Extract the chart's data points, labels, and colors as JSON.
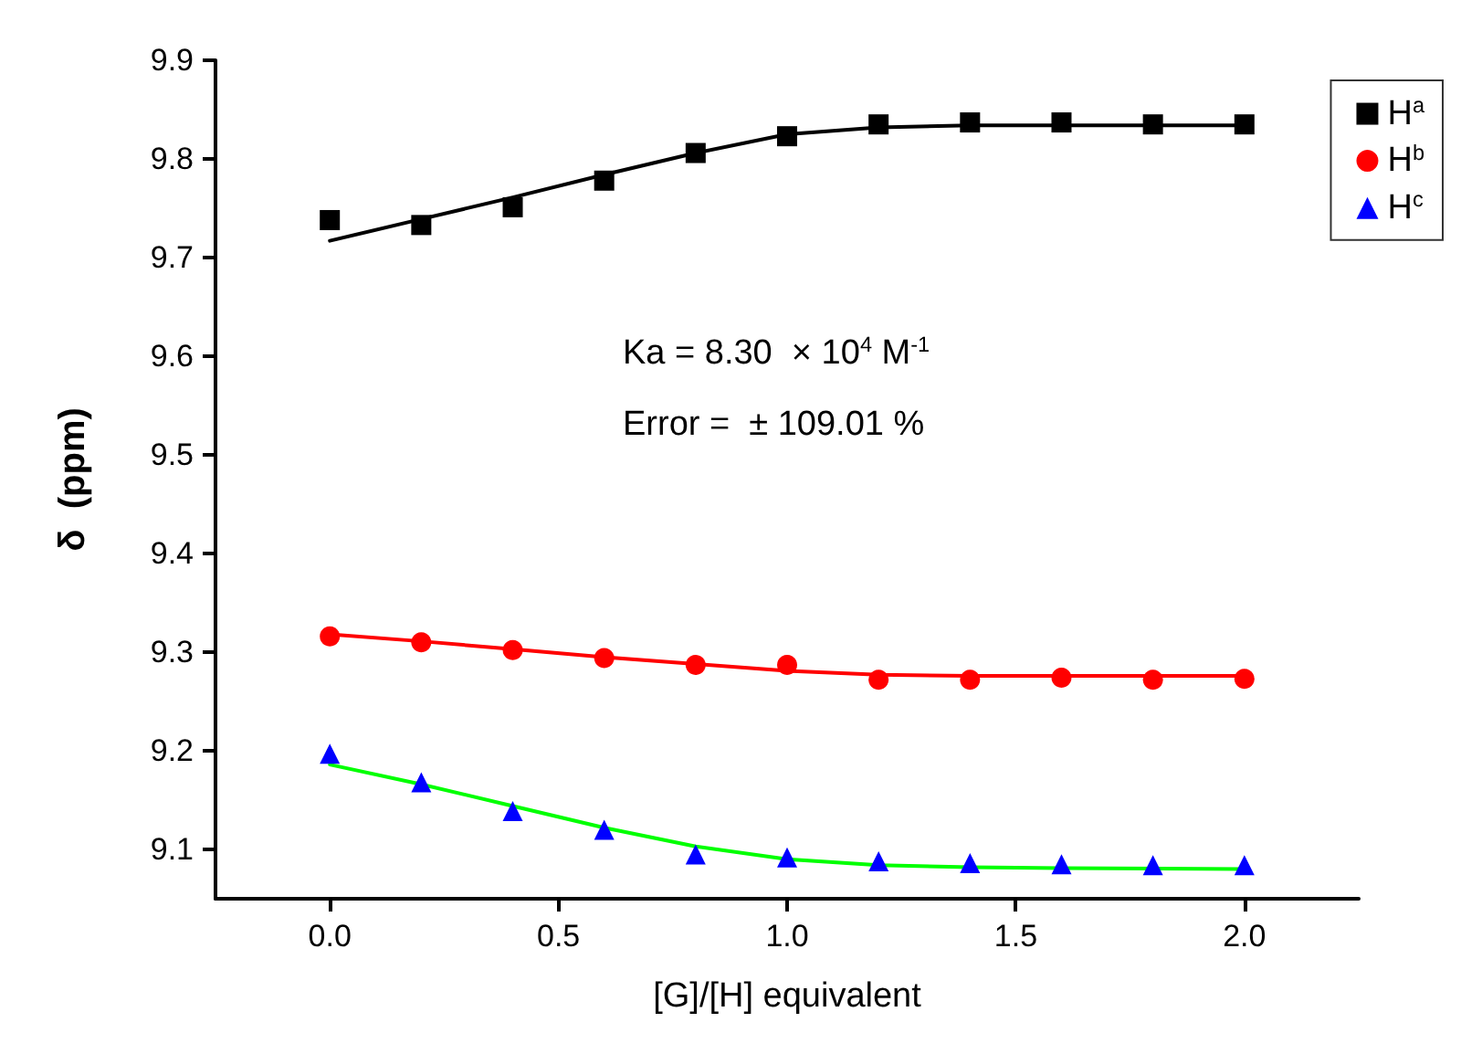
{
  "chart_data": {
    "type": "scatter",
    "xlabel": "[G]/[H] equivalent",
    "ylabel": "δ  (ppm)",
    "xlim": [
      -0.25,
      2.25
    ],
    "xticks": [
      {
        "value": 0,
        "label": "0.0"
      },
      0.5,
      {
        "value": 1,
        "label": "1.0"
      },
      1.5,
      {
        "value": 2,
        "label": "2.0"
      }
    ],
    "ylim": [
      9.05,
      9.9
    ],
    "yticks": [
      9.1,
      9.2,
      9.3,
      9.4,
      9.5,
      9.6,
      9.7,
      9.8,
      9.9
    ],
    "grid": false,
    "legend": "top right",
    "annotations": [
      "Ka = 8.30  × 10$^{4}$ M$^{-1}$",
      "Error =  ± 109.01 %"
    ],
    "series": [
      {
        "name": "H$^{a}$",
        "marker": "square",
        "color": "#000000",
        "x": [
          0,
          0.2,
          0.4,
          0.6,
          0.8,
          1.0,
          1.2,
          1.4,
          1.6,
          1.8,
          2.0
        ],
        "values": [
          9.738,
          9.733,
          9.751,
          9.778,
          9.806,
          9.823,
          9.835,
          9.837,
          9.837,
          9.835,
          9.835
        ]
      },
      {
        "name": "H$^{b}$",
        "marker": "circle",
        "color": "#ff0000",
        "x": [
          0,
          0.2,
          0.4,
          0.6,
          0.8,
          1.0,
          1.2,
          1.4,
          1.6,
          1.8,
          2.0
        ],
        "values": [
          9.316,
          9.31,
          9.302,
          9.294,
          9.287,
          9.287,
          9.272,
          9.272,
          9.274,
          9.272,
          9.273
        ]
      },
      {
        "name": "H$^{c}$",
        "marker": "triangle",
        "color": "#0000ff",
        "x": [
          0,
          0.2,
          0.4,
          0.6,
          0.8,
          1.0,
          1.2,
          1.4,
          1.6,
          1.8,
          2.0
        ],
        "values": [
          9.197,
          9.168,
          9.139,
          9.12,
          9.095,
          9.092,
          9.088,
          9.086,
          9.085,
          9.084,
          9.084
        ]
      },
      {
        "type": "line",
        "marker": "none",
        "line_style": "solid",
        "color": "#000000",
        "x": [
          0,
          0.2,
          0.4,
          0.6,
          0.8,
          1.0,
          1.2,
          1.4,
          1.6,
          2.0
        ],
        "values": [
          9.717,
          9.739,
          9.761,
          9.784,
          9.806,
          9.825,
          9.832,
          9.834,
          9.834,
          9.834
        ]
      },
      {
        "type": "line",
        "marker": "none",
        "line_style": "solid",
        "color": "#ff0000",
        "x": [
          0,
          0.2,
          0.4,
          0.6,
          0.8,
          1.0,
          1.2,
          1.4,
          1.6,
          2.0
        ],
        "values": [
          9.318,
          9.311,
          9.303,
          9.295,
          9.288,
          9.281,
          9.277,
          9.276,
          9.276,
          9.276
        ]
      },
      {
        "type": "line",
        "marker": "none",
        "line_style": "solid",
        "color": "#00ff00",
        "x": [
          0,
          0.2,
          0.4,
          0.6,
          0.8,
          1.0,
          1.2,
          1.4,
          1.6,
          2.0
        ],
        "values": [
          9.186,
          9.166,
          9.144,
          9.122,
          9.103,
          9.09,
          9.084,
          9.082,
          9.081,
          9.08
        ]
      }
    ]
  }
}
